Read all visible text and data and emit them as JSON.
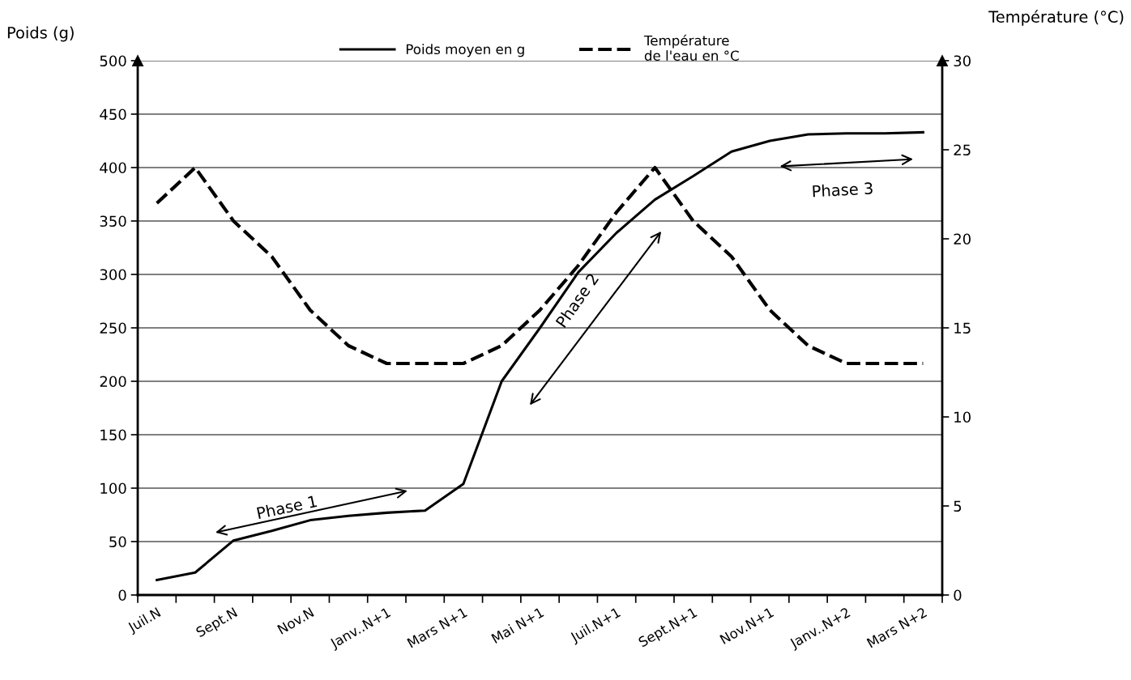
{
  "chart_data": {
    "type": "line",
    "categories": [
      "Juil.N",
      null,
      "Sept.N",
      null,
      "Nov.N",
      null,
      "Janv..N+1",
      null,
      "Mars N+1",
      null,
      "Mai N+1",
      null,
      "Juil.N+1",
      null,
      "Sept.N+1",
      null,
      "Nov.N+1",
      null,
      "Janv..N+2",
      null,
      "Mars N+2"
    ],
    "series": [
      {
        "name": "Poids moyen en g",
        "color": "#000000",
        "line_style": "solid",
        "axis": "y",
        "values": [
          14,
          21,
          51,
          60,
          70,
          74,
          77,
          79,
          104,
          200,
          250,
          302,
          339,
          370,
          392,
          415,
          425,
          431,
          432,
          432,
          433
        ]
      },
      {
        "name": "Température\nde l'eau en °C",
        "color": "#000000",
        "line_style": "dashed",
        "axis": "y2",
        "values": [
          22,
          24,
          21,
          19,
          16,
          14,
          13,
          13,
          13,
          14,
          16,
          18.5,
          21.5,
          24,
          21,
          19,
          16,
          14,
          13,
          13,
          13
        ]
      }
    ],
    "ylabel": "Poids (g)",
    "y2label": "Température (°C)",
    "ylim": [
      0,
      500
    ],
    "yticks": [
      0,
      50,
      100,
      150,
      200,
      250,
      300,
      350,
      400,
      450,
      500
    ],
    "y2lim": [
      0,
      30
    ],
    "y2ticks": [
      0,
      5,
      10,
      15,
      20,
      25,
      30
    ],
    "grid": "y",
    "legend": "top",
    "marker": "none",
    "annotations": [
      "Phase 1",
      "Phase 2",
      "Phase 3"
    ]
  }
}
